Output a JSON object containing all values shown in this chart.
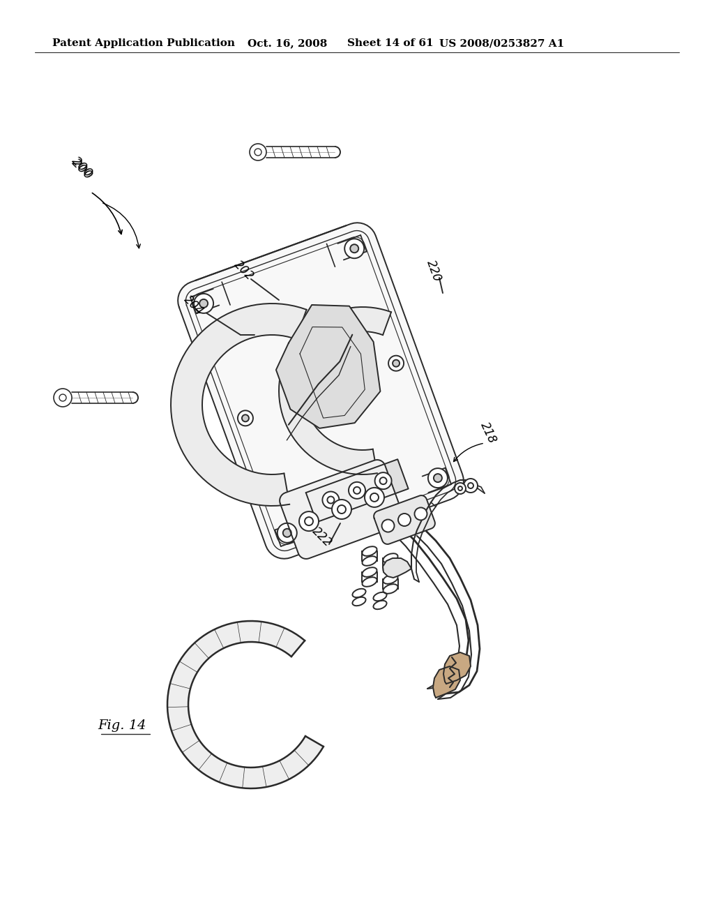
{
  "background_color": "#ffffff",
  "header_text": "Patent Application Publication",
  "header_date": "Oct. 16, 2008",
  "header_sheet": "Sheet 14 of 61",
  "header_patent": "US 2008/0253827 A1",
  "fig_label": "Fig. 14",
  "line_color": "#2a2a2a",
  "line_width": 1.4,
  "page_width": 10.24,
  "page_height": 13.2
}
